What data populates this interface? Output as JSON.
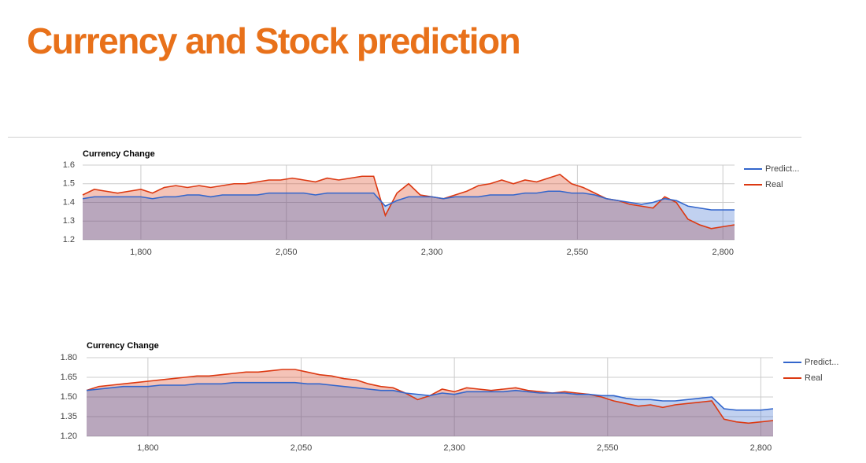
{
  "title": "Currency and Stock prediction",
  "chart_data": [
    {
      "type": "area",
      "title": "Currency Change",
      "x": [
        1700,
        1720,
        1740,
        1760,
        1780,
        1800,
        1820,
        1840,
        1860,
        1880,
        1900,
        1920,
        1940,
        1960,
        1980,
        2000,
        2020,
        2040,
        2060,
        2080,
        2100,
        2120,
        2140,
        2160,
        2180,
        2200,
        2220,
        2240,
        2260,
        2280,
        2300,
        2320,
        2340,
        2360,
        2380,
        2400,
        2420,
        2440,
        2460,
        2480,
        2500,
        2520,
        2540,
        2560,
        2580,
        2600,
        2620,
        2640,
        2660,
        2680,
        2700,
        2720,
        2740,
        2760,
        2780,
        2800,
        2820
      ],
      "series": [
        {
          "name": "Predict...",
          "color": "#3366cc",
          "values": [
            1.42,
            1.43,
            1.43,
            1.43,
            1.43,
            1.43,
            1.42,
            1.43,
            1.43,
            1.44,
            1.44,
            1.43,
            1.44,
            1.44,
            1.44,
            1.44,
            1.45,
            1.45,
            1.45,
            1.45,
            1.44,
            1.45,
            1.45,
            1.45,
            1.45,
            1.45,
            1.38,
            1.41,
            1.43,
            1.43,
            1.43,
            1.42,
            1.43,
            1.43,
            1.43,
            1.44,
            1.44,
            1.44,
            1.45,
            1.45,
            1.46,
            1.46,
            1.45,
            1.45,
            1.44,
            1.42,
            1.41,
            1.4,
            1.39,
            1.4,
            1.42,
            1.41,
            1.38,
            1.37,
            1.36,
            1.36,
            1.36
          ]
        },
        {
          "name": "Real",
          "color": "#dc3912",
          "values": [
            1.44,
            1.47,
            1.46,
            1.45,
            1.46,
            1.47,
            1.45,
            1.48,
            1.49,
            1.48,
            1.49,
            1.48,
            1.49,
            1.5,
            1.5,
            1.51,
            1.52,
            1.52,
            1.53,
            1.52,
            1.51,
            1.53,
            1.52,
            1.53,
            1.54,
            1.54,
            1.33,
            1.45,
            1.5,
            1.44,
            1.43,
            1.42,
            1.44,
            1.46,
            1.49,
            1.5,
            1.52,
            1.5,
            1.52,
            1.51,
            1.53,
            1.55,
            1.5,
            1.48,
            1.45,
            1.42,
            1.41,
            1.39,
            1.38,
            1.37,
            1.43,
            1.4,
            1.31,
            1.28,
            1.26,
            1.27,
            1.28
          ]
        }
      ],
      "xlim": [
        1700,
        2820
      ],
      "xticks": [
        {
          "value": 1800,
          "label": "1,800"
        },
        {
          "value": 2050,
          "label": "2,050"
        },
        {
          "value": 2300,
          "label": "2,300"
        },
        {
          "value": 2550,
          "label": "2,550"
        },
        {
          "value": 2800,
          "label": "2,800"
        }
      ],
      "ylim": [
        1.2,
        1.6
      ],
      "yticks": [
        1.2,
        1.3,
        1.4,
        1.5,
        1.6
      ],
      "grid": true,
      "legend": "right"
    },
    {
      "type": "area",
      "title": "Currency Change",
      "x": [
        1700,
        1720,
        1740,
        1760,
        1780,
        1800,
        1820,
        1840,
        1860,
        1880,
        1900,
        1920,
        1940,
        1960,
        1980,
        2000,
        2020,
        2040,
        2060,
        2080,
        2100,
        2120,
        2140,
        2160,
        2180,
        2200,
        2220,
        2240,
        2260,
        2280,
        2300,
        2320,
        2340,
        2360,
        2380,
        2400,
        2420,
        2440,
        2460,
        2480,
        2500,
        2520,
        2540,
        2560,
        2580,
        2600,
        2620,
        2640,
        2660,
        2680,
        2700,
        2720,
        2740,
        2760,
        2780,
        2800,
        2820
      ],
      "series": [
        {
          "name": "Predict...",
          "color": "#3366cc",
          "values": [
            1.55,
            1.56,
            1.57,
            1.58,
            1.58,
            1.58,
            1.59,
            1.59,
            1.59,
            1.6,
            1.6,
            1.6,
            1.61,
            1.61,
            1.61,
            1.61,
            1.61,
            1.61,
            1.6,
            1.6,
            1.59,
            1.58,
            1.57,
            1.56,
            1.55,
            1.55,
            1.53,
            1.52,
            1.51,
            1.53,
            1.52,
            1.54,
            1.54,
            1.54,
            1.54,
            1.55,
            1.54,
            1.53,
            1.53,
            1.53,
            1.52,
            1.52,
            1.51,
            1.51,
            1.49,
            1.48,
            1.48,
            1.47,
            1.47,
            1.48,
            1.49,
            1.5,
            1.41,
            1.4,
            1.4,
            1.4,
            1.41
          ]
        },
        {
          "name": "Real",
          "color": "#dc3912",
          "values": [
            1.55,
            1.58,
            1.59,
            1.6,
            1.61,
            1.62,
            1.63,
            1.64,
            1.65,
            1.66,
            1.66,
            1.67,
            1.68,
            1.69,
            1.69,
            1.7,
            1.71,
            1.71,
            1.69,
            1.67,
            1.66,
            1.64,
            1.63,
            1.6,
            1.58,
            1.57,
            1.53,
            1.48,
            1.51,
            1.56,
            1.54,
            1.57,
            1.56,
            1.55,
            1.56,
            1.57,
            1.55,
            1.54,
            1.53,
            1.54,
            1.53,
            1.52,
            1.5,
            1.47,
            1.45,
            1.43,
            1.44,
            1.42,
            1.44,
            1.45,
            1.46,
            1.47,
            1.33,
            1.31,
            1.3,
            1.31,
            1.32
          ]
        }
      ],
      "xlim": [
        1700,
        2820
      ],
      "xticks": [
        {
          "value": 1800,
          "label": "1,800"
        },
        {
          "value": 2050,
          "label": "2,050"
        },
        {
          "value": 2300,
          "label": "2,300"
        },
        {
          "value": 2550,
          "label": "2,550"
        },
        {
          "value": 2800,
          "label": "2,800"
        }
      ],
      "ylim": [
        1.2,
        1.8
      ],
      "yticks": [
        {
          "value": 1.2,
          "label": "1.20"
        },
        1.35,
        {
          "value": 1.5,
          "label": "1.50"
        },
        1.65,
        {
          "value": 1.8,
          "label": "1.80"
        }
      ],
      "grid": true,
      "legend": "right"
    }
  ]
}
